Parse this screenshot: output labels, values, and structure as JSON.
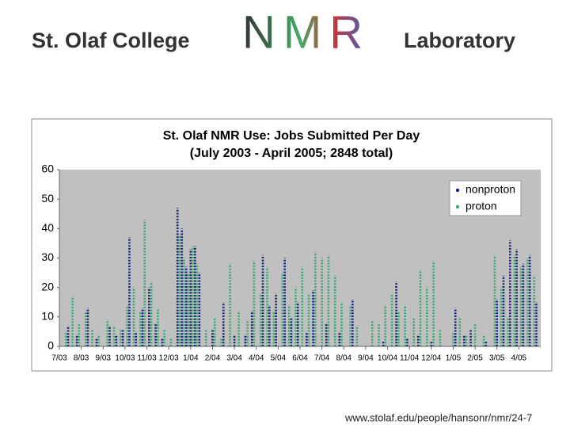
{
  "header": {
    "left": "St. Olaf College",
    "logo": "NMR",
    "right": "Laboratory"
  },
  "footer": "www.stolaf.edu/people/hansonr/nmr/24-7",
  "chart_data": {
    "type": "dotcolumn",
    "title": "St. Olaf NMR Use: Jobs Submitted Per Day",
    "subtitle": "(July 2003 - April 2005; 2848 total)",
    "xlim": [
      0,
      22
    ],
    "xticks": [
      {
        "value": 0,
        "label": "7/03"
      },
      {
        "value": 1,
        "label": "8/03"
      },
      {
        "value": 2,
        "label": "9/03"
      },
      {
        "value": 3,
        "label": "10/03"
      },
      {
        "value": 4,
        "label": "11/03"
      },
      {
        "value": 5,
        "label": "12/03"
      },
      {
        "value": 6,
        "label": "1/04"
      },
      {
        "value": 7,
        "label": "2/04"
      },
      {
        "value": 8,
        "label": "3/04"
      },
      {
        "value": 9,
        "label": "4/04"
      },
      {
        "value": 10,
        "label": "5/04"
      },
      {
        "value": 11,
        "label": "6/04"
      },
      {
        "value": 12,
        "label": "7/04"
      },
      {
        "value": 13,
        "label": "8/04"
      },
      {
        "value": 14,
        "label": "9/04"
      },
      {
        "value": 15,
        "label": "10/04"
      },
      {
        "value": 16,
        "label": "11/04"
      },
      {
        "value": 17,
        "label": "12/04"
      },
      {
        "value": 18,
        "label": "1/05"
      },
      {
        "value": 19,
        "label": "2/05"
      },
      {
        "value": 20,
        "label": "3/05"
      },
      {
        "value": 21,
        "label": "4/05"
      }
    ],
    "ylim": [
      0,
      60
    ],
    "yticks": [
      0,
      10,
      20,
      30,
      40,
      50,
      60
    ],
    "grid": false,
    "legend": "upper right",
    "series": [
      {
        "name": "nonproton",
        "color": "#14237a",
        "x": [
          0.4,
          0.8,
          1.3,
          1.7,
          2.3,
          2.6,
          2.9,
          3.2,
          3.5,
          3.8,
          4.1,
          4.4,
          4.7,
          5.4,
          5.6,
          5.8,
          6.0,
          6.2,
          6.4,
          7.0,
          7.5,
          8.0,
          8.5,
          8.8,
          9.3,
          9.6,
          9.9,
          10.3,
          10.6,
          10.9,
          11.3,
          11.6,
          12.2,
          12.8,
          13.4,
          14.8,
          15.4,
          15.9,
          16.4,
          17.0,
          18.1,
          18.5,
          18.8,
          19.5,
          20.0,
          20.3,
          20.6,
          20.9,
          21.2,
          21.5,
          21.8
        ],
        "values": [
          7,
          4,
          13,
          3,
          7,
          4,
          6,
          37,
          5,
          13,
          20,
          8,
          3,
          47,
          40,
          27,
          33,
          34,
          25,
          6,
          15,
          4,
          4,
          12,
          31,
          14,
          18,
          30,
          10,
          15,
          5,
          19,
          8,
          5,
          16,
          2,
          22,
          3,
          4,
          2,
          13,
          4,
          6,
          2,
          16,
          24,
          36,
          33,
          28,
          31,
          15
        ]
      },
      {
        "name": "proton",
        "color": "#3aa872",
        "x": [
          0.3,
          0.6,
          0.9,
          1.2,
          1.5,
          1.8,
          2.2,
          2.5,
          2.8,
          3.1,
          3.4,
          3.7,
          3.9,
          4.2,
          4.5,
          4.8,
          5.1,
          5.5,
          5.7,
          5.9,
          6.1,
          6.3,
          6.7,
          7.1,
          7.4,
          7.8,
          8.2,
          8.6,
          8.9,
          9.2,
          9.5,
          9.8,
          10.2,
          10.5,
          10.8,
          11.1,
          11.4,
          11.7,
          12.0,
          12.3,
          12.6,
          12.9,
          13.3,
          13.6,
          14.3,
          14.6,
          14.9,
          15.2,
          15.5,
          15.8,
          16.2,
          16.5,
          16.8,
          17.1,
          17.4,
          18.0,
          18.3,
          18.6,
          19.0,
          19.4,
          19.9,
          20.2,
          20.5,
          20.8,
          21.1,
          21.4,
          21.7
        ],
        "values": [
          5,
          17,
          8,
          12,
          6,
          4,
          9,
          7,
          6,
          14,
          20,
          12,
          43,
          22,
          13,
          6,
          3,
          38,
          30,
          25,
          34,
          28,
          6,
          10,
          3,
          28,
          12,
          9,
          29,
          18,
          27,
          12,
          25,
          14,
          20,
          27,
          18,
          32,
          30,
          31,
          24,
          15,
          14,
          7,
          9,
          8,
          14,
          18,
          12,
          14,
          10,
          26,
          20,
          29,
          6,
          5,
          10,
          4,
          8,
          4,
          31,
          20,
          10,
          31,
          27,
          30,
          24
        ]
      }
    ]
  }
}
